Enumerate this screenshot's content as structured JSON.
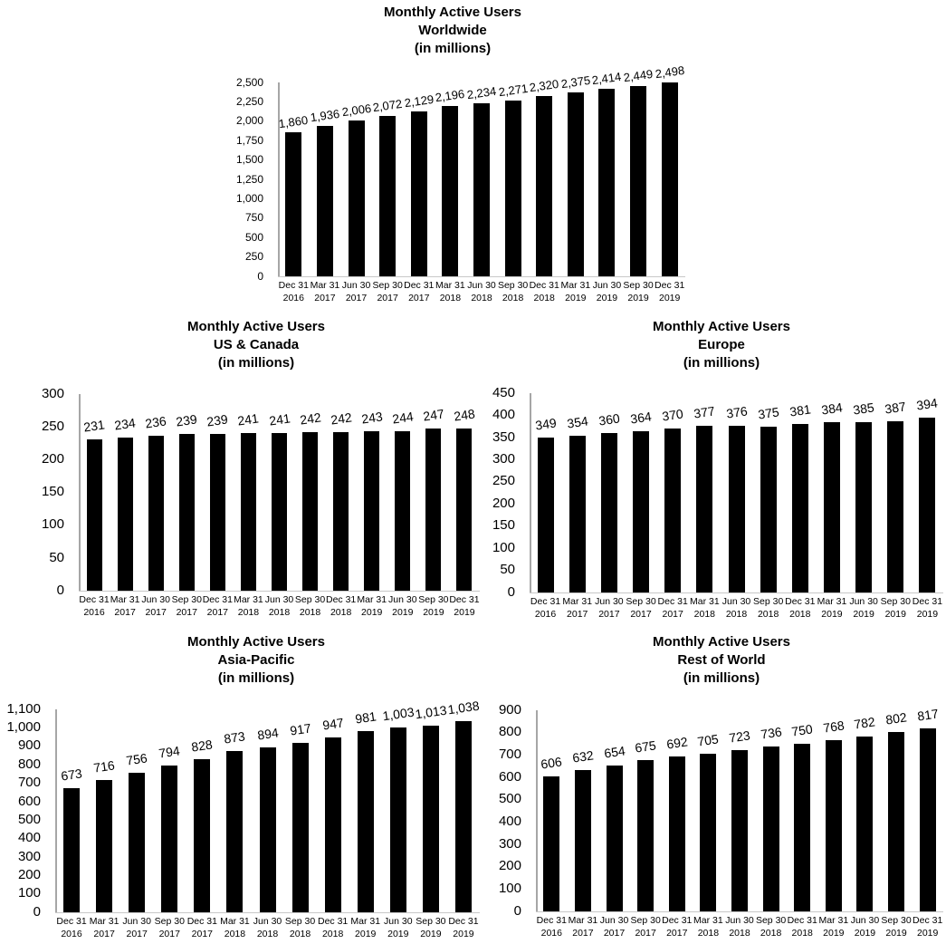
{
  "page": {
    "background_color": "#ffffff",
    "text_color": "#000000",
    "bar_color": "#000000",
    "axis_line_color": "#a6a6a6"
  },
  "chart_data": [
    {
      "id": "worldwide",
      "type": "bar",
      "title": "Monthly Active Users",
      "subtitle": "Worldwide",
      "unit_label": "(in millions)",
      "categories": [
        "Dec 31 2016",
        "Mar 31 2017",
        "Jun 30 2017",
        "Sep 30 2017",
        "Dec 31 2017",
        "Mar 31 2018",
        "Jun 30 2018",
        "Sep 30 2018",
        "Dec 31 2018",
        "Mar 31 2019",
        "Jun 30 2019",
        "Sep 30 2019",
        "Dec 31 2019"
      ],
      "values": [
        1860,
        1936,
        2006,
        2072,
        2129,
        2196,
        2234,
        2271,
        2320,
        2375,
        2414,
        2449,
        2498
      ],
      "ylim": [
        0,
        2500
      ],
      "ytick": 250,
      "grid": false,
      "legend": "none",
      "data_labels": true,
      "bar_color": "#000000"
    },
    {
      "id": "us-canada",
      "type": "bar",
      "title": "Monthly Active Users",
      "subtitle": "US & Canada",
      "unit_label": "(in millions)",
      "categories": [
        "Dec 31 2016",
        "Mar 31 2017",
        "Jun 30 2017",
        "Sep 30 2017",
        "Dec 31 2017",
        "Mar 31 2018",
        "Jun 30 2018",
        "Sep 30 2018",
        "Dec 31 2018",
        "Mar 31 2019",
        "Jun 30 2019",
        "Sep 30 2019",
        "Dec 31 2019"
      ],
      "values": [
        231,
        234,
        236,
        239,
        239,
        241,
        241,
        242,
        242,
        243,
        244,
        247,
        248
      ],
      "ylim": [
        0,
        300
      ],
      "ytick": 50,
      "grid": false,
      "legend": "none",
      "data_labels": true,
      "bar_color": "#000000"
    },
    {
      "id": "europe",
      "type": "bar",
      "title": "Monthly Active Users",
      "subtitle": "Europe",
      "unit_label": "(in millions)",
      "categories": [
        "Dec 31 2016",
        "Mar 31 2017",
        "Jun 30 2017",
        "Sep 30 2017",
        "Dec 31 2017",
        "Mar 31 2018",
        "Jun 30 2018",
        "Sep 30 2018",
        "Dec 31 2018",
        "Mar 31 2019",
        "Jun 30 2019",
        "Sep 30 2019",
        "Dec 31 2019"
      ],
      "values": [
        349,
        354,
        360,
        364,
        370,
        377,
        376,
        375,
        381,
        384,
        385,
        387,
        394
      ],
      "ylim": [
        0,
        450
      ],
      "ytick": 50,
      "grid": false,
      "legend": "none",
      "data_labels": true,
      "bar_color": "#000000"
    },
    {
      "id": "asia-pacific",
      "type": "bar",
      "title": "Monthly Active Users",
      "subtitle": "Asia-Pacific",
      "unit_label": "(in millions)",
      "categories": [
        "Dec 31 2016",
        "Mar 31 2017",
        "Jun 30 2017",
        "Sep 30 2017",
        "Dec 31 2017",
        "Mar 31 2018",
        "Jun 30 2018",
        "Sep 30 2018",
        "Dec 31 2018",
        "Mar 31 2019",
        "Jun 30 2019",
        "Sep 30 2019",
        "Dec 31 2019"
      ],
      "values": [
        673,
        716,
        756,
        794,
        828,
        873,
        894,
        917,
        947,
        981,
        1003,
        1013,
        1038
      ],
      "ylim": [
        0,
        1100
      ],
      "ytick": 100,
      "grid": false,
      "legend": "none",
      "data_labels": true,
      "bar_color": "#000000"
    },
    {
      "id": "rest-of-world",
      "type": "bar",
      "title": "Monthly Active Users",
      "subtitle": "Rest of World",
      "unit_label": "(in millions)",
      "categories": [
        "Dec 31 2016",
        "Mar 31 2017",
        "Jun 30 2017",
        "Sep 30 2017",
        "Dec 31 2017",
        "Mar 31 2018",
        "Jun 30 2018",
        "Sep 30 2018",
        "Dec 31 2018",
        "Mar 31 2019",
        "Jun 30 2019",
        "Sep 30 2019",
        "Dec 31 2019"
      ],
      "values": [
        606,
        632,
        654,
        675,
        692,
        705,
        723,
        736,
        750,
        768,
        782,
        802,
        817
      ],
      "ylim": [
        0,
        900
      ],
      "ytick": 100,
      "grid": false,
      "legend": "none",
      "data_labels": true,
      "bar_color": "#000000"
    }
  ]
}
